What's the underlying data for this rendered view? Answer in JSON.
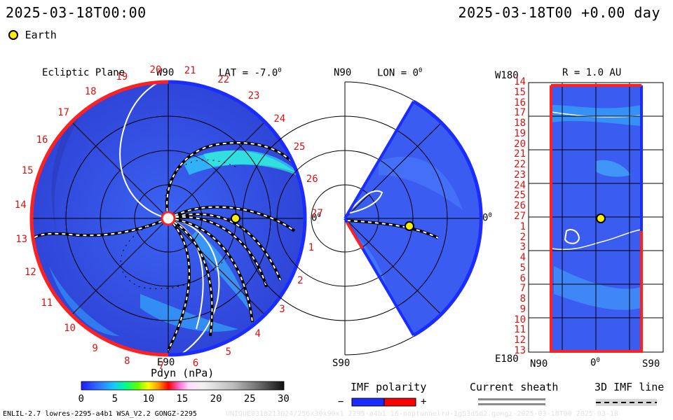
{
  "header": {
    "left_datetime": "2025-03-18T00:00",
    "right_datetime": "2025-03-18T00 +0.00 day",
    "legend_earth": "Earth"
  },
  "panels": {
    "ecliptic": {
      "title": "Ecliptic Plane",
      "top_label": "W90",
      "bottom_label": "E90",
      "right_label": "0",
      "lat_label": "LAT = -7.0",
      "lat_deg_mark": "0",
      "carrington_numbers": [
        "20",
        "21",
        "22",
        "23",
        "24",
        "25",
        "26",
        "27",
        "1",
        "2",
        "3",
        "4",
        "5",
        "6",
        "7",
        "8",
        "9",
        "10",
        "11",
        "12",
        "13",
        "14",
        "15",
        "16",
        "17",
        "18",
        "19"
      ]
    },
    "meridional": {
      "top_label": "N90",
      "bottom_label": "S90",
      "lon_label": "LON = 0",
      "lon_deg_mark": "0",
      "right_label": "0"
    },
    "sphere": {
      "title": "R = 1.0 AU",
      "top_left_label": "W180",
      "bottom_left_label": "E180",
      "x_labels": [
        "N90",
        "0",
        "S90"
      ],
      "x_deg_mark": "0",
      "y_labels": [
        "14",
        "15",
        "16",
        "17",
        "18",
        "19",
        "20",
        "21",
        "22",
        "23",
        "24",
        "25",
        "26",
        "27",
        "1",
        "2",
        "3",
        "4",
        "5",
        "6",
        "7",
        "8",
        "9",
        "10",
        "11",
        "12",
        "13"
      ]
    }
  },
  "colorbar": {
    "title": "Pdyn (nPa)",
    "ticks": [
      "0",
      "5",
      "10",
      "15",
      "20",
      "25",
      "30"
    ],
    "range": [
      0,
      30
    ]
  },
  "legends": {
    "imf_polarity": {
      "title": "IMF polarity",
      "minus": "−",
      "plus": "+",
      "colors": [
        "#1a1aff",
        "#ff0000"
      ]
    },
    "current_sheath": {
      "title": "Current sheath"
    },
    "imf_line": {
      "title": "3D IMF line"
    }
  },
  "footer": {
    "left": "ENLIL-2.7 lowres-2295-a4b1 WSA_V2.2 GONGZ-2295",
    "right_faint": "UNIQUE0318213024/256x30x90x1 2295-a4b1 16-noptunnelrd-1g53d5d2.gongz-2025-03-18T00 2025-03-18"
  },
  "colors": {
    "background_field": "#3b5cf0",
    "dark_field": "#2a3cc8",
    "boundary_red": "#ff2020",
    "boundary_blue": "#1a2cff",
    "earth": "#ffee00",
    "number_red": "#dd1111"
  }
}
